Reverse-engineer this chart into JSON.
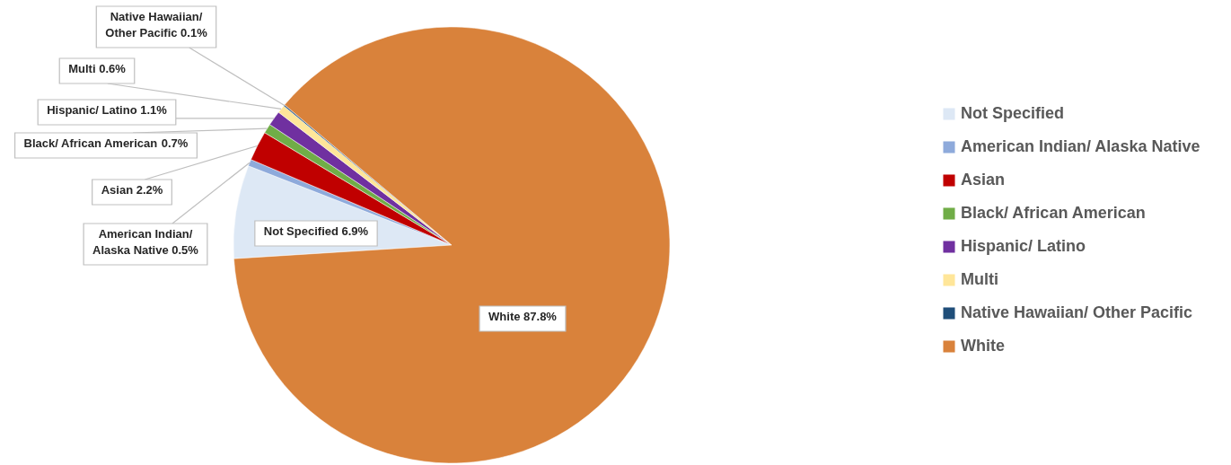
{
  "chart_data": {
    "type": "pie",
    "categories": [
      "Not Specified",
      "American Indian/ Alaska Native",
      "Asian",
      "Black/ African American",
      "Hispanic/ Latino",
      "Multi",
      "Native Hawaiian/ Other Pacific",
      "White"
    ],
    "values": [
      6.9,
      0.5,
      2.2,
      0.7,
      1.1,
      0.6,
      0.1,
      87.8
    ],
    "colors": [
      "#dde8f5",
      "#8eaadb",
      "#c00000",
      "#70ad47",
      "#7030a0",
      "#ffe699",
      "#1f4e79",
      "#d9823b"
    ],
    "value_labels": [
      "6.9%",
      "0.5%",
      "2.2%",
      "0.7%",
      "1.1%",
      "0.6%",
      "0.1%",
      "87.8%"
    ],
    "legend": "right"
  }
}
